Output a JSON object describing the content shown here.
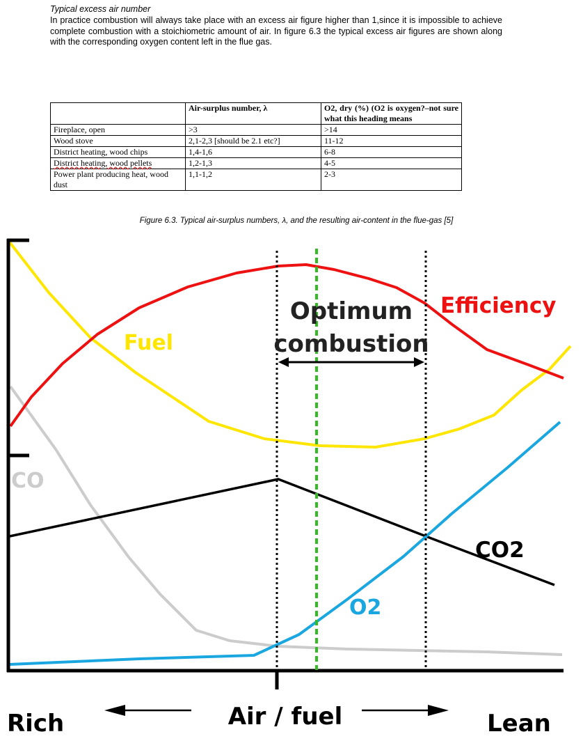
{
  "document": {
    "section_heading": "Typical excess air number",
    "paragraph": "In practice combustion will always take place with an excess air figure higher than 1,since it is impossible to achieve complete combustion with a stoichiometric amount of air. In figure 6.3 the typical excess air figures are shown along with the corresponding oxygen content left in the flue gas."
  },
  "table": {
    "headers": [
      "",
      "Air-surplus number, λ",
      "O2, dry (%) (O2 is oxygen?–not sure what this heading means"
    ],
    "rows": [
      [
        "Fireplace, open",
        ">3",
        ">14"
      ],
      [
        "Wood stove",
        "2,1-2,3 [should be 2.1 etc?]",
        "11-12"
      ],
      [
        "District heating, wood chips",
        "1,4-1,6",
        "6-8"
      ],
      [
        "District heating, wood pellets",
        "1,2-1,3",
        "4-5"
      ],
      [
        "Power plant producing heat, wood dust",
        "1,1-1,2",
        "2-3"
      ]
    ],
    "caption": "Figure 6.3. Typical air-surplus numbers, λ, and the resulting air-content in the flue-gas [5]"
  },
  "diagram": {
    "labels": {
      "fuel": "Fuel",
      "efficiency": "Efficiency",
      "co": "CO",
      "co2": "CO2",
      "o2": "O2",
      "optimum_line1": "Optimum",
      "optimum_line2": "combustion",
      "rich": "Rich",
      "air_fuel": "Air / fuel",
      "lean": "Lean"
    },
    "colors": {
      "fuel": "#ffe600",
      "efficiency": "#ee1111",
      "co": "#cccccc",
      "co2": "#000000",
      "o2": "#1aa7e0",
      "optimum_marker": "#33bb22"
    }
  }
}
